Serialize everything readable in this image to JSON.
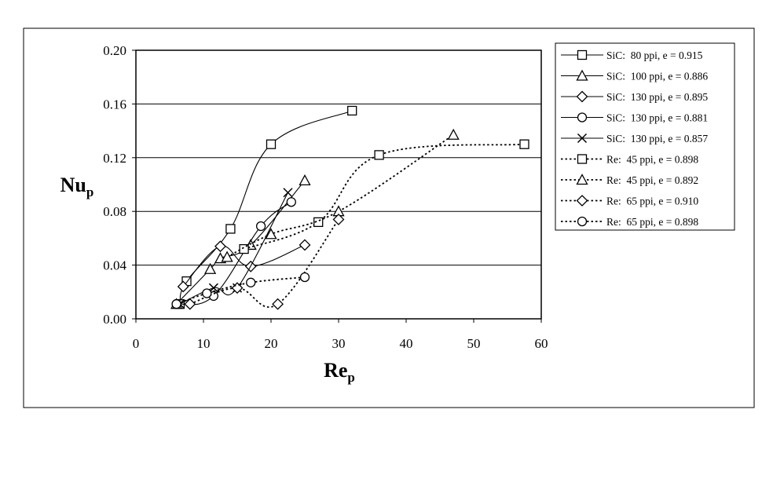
{
  "chart_data": {
    "type": "line",
    "xlabel": {
      "main": "Re",
      "sub": "p"
    },
    "ylabel": {
      "main": "Nu",
      "sub": "p"
    },
    "xlim": [
      0,
      60
    ],
    "ylim": [
      0,
      0.2
    ],
    "x_ticks": [
      0,
      10,
      20,
      30,
      40,
      50,
      60
    ],
    "y_ticks": [
      0,
      0.04,
      0.08,
      0.12,
      0.16,
      0.2
    ],
    "x_tick_labels": [
      "0",
      "10",
      "20",
      "30",
      "40",
      "50",
      "60"
    ],
    "y_tick_labels": [
      "0.00",
      "0.04",
      "0.08",
      "0.12",
      "0.16",
      "0.20"
    ],
    "grid": "horizontal",
    "legend_position": "right",
    "series": [
      {
        "name": "SiC:  80 ppi, e = 0.915",
        "marker": "square",
        "line": "solid",
        "x": [
          6.5,
          7.5,
          14,
          20,
          32
        ],
        "y": [
          0.011,
          0.028,
          0.067,
          0.13,
          0.155
        ]
      },
      {
        "name": "SiC:  100 ppi, e = 0.886",
        "marker": "triangle",
        "line": "solid",
        "x": [
          6,
          11,
          12.5,
          17,
          25
        ],
        "y": [
          0.011,
          0.037,
          0.045,
          0.055,
          0.103
        ]
      },
      {
        "name": "SiC:  130 ppi, e = 0.895",
        "marker": "diamond",
        "line": "solid",
        "x": [
          7,
          12.5,
          17,
          25
        ],
        "y": [
          0.024,
          0.054,
          0.039,
          0.055
        ]
      },
      {
        "name": "SiC:  130 ppi, e = 0.881",
        "marker": "circle",
        "line": "solid",
        "x": [
          6,
          11.5,
          18.5,
          23
        ],
        "y": [
          0.011,
          0.017,
          0.069,
          0.087
        ]
      },
      {
        "name": "SiC:  130 ppi, e = 0.857",
        "marker": "cross",
        "line": "solid",
        "x": [
          6.5,
          11.5,
          15,
          22.5
        ],
        "y": [
          0.011,
          0.023,
          0.023,
          0.094
        ]
      },
      {
        "name": "Re:  45 ppi, e = 0.898",
        "marker": "square",
        "line": "dotted",
        "x": [
          16,
          27,
          36,
          57.5
        ],
        "y": [
          0.052,
          0.072,
          0.122,
          0.13
        ]
      },
      {
        "name": "Re:  45 ppi, e = 0.892",
        "marker": "triangle",
        "line": "dotted",
        "x": [
          13.5,
          20,
          30,
          47
        ],
        "y": [
          0.046,
          0.063,
          0.08,
          0.137
        ]
      },
      {
        "name": "Re:  65 ppi, e = 0.910",
        "marker": "diamond",
        "line": "dotted",
        "x": [
          8,
          15,
          21,
          30
        ],
        "y": [
          0.011,
          0.023,
          0.011,
          0.074
        ]
      },
      {
        "name": "Re:  65 ppi, e = 0.898",
        "marker": "circle",
        "line": "dotted",
        "x": [
          6,
          10.5,
          17,
          25
        ],
        "y": [
          0.011,
          0.019,
          0.027,
          0.031
        ]
      }
    ]
  }
}
